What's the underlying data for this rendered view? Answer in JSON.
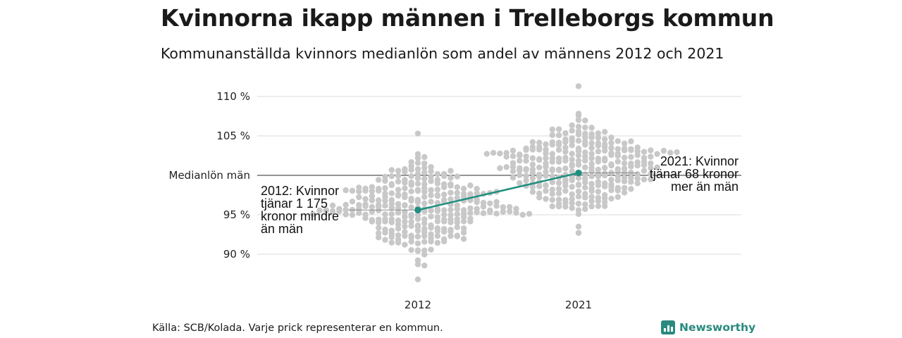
{
  "header": {
    "title": "Kvinnorna ikapp männen i Trelleborgs kommun",
    "subtitle": "Kommunanställda kvinnors medianlön som andel av männens 2012 och 2021"
  },
  "footer": {
    "source": "Källa: SCB/Kolada. Varje prick representerar en kommun.",
    "brand": "Newsworthy",
    "brand_icon": "bar-chart-logo-icon"
  },
  "colors": {
    "dots": "#c8c8c8",
    "highlight": "#1f8f80",
    "grid": "#e2e2e2",
    "reference": "#555555"
  },
  "chart_data": {
    "type": "scatter",
    "subtype": "beeswarm",
    "categories": [
      "2012",
      "2021"
    ],
    "ylim": [
      86,
      112
    ],
    "yticks": [
      {
        "value": 90,
        "label": "90 %"
      },
      {
        "value": 95,
        "label": "95 %"
      },
      {
        "value": 100,
        "label": "Medianlön män"
      },
      {
        "value": 105,
        "label": "105 %"
      },
      {
        "value": 110,
        "label": "110 %"
      }
    ],
    "reference_line": {
      "value": 100,
      "label": "Medianlön män"
    },
    "swarms": [
      {
        "category": "2012",
        "min": 86.8,
        "max": 105.3,
        "center": 96.3,
        "spread": 2.6
      },
      {
        "category": "2021",
        "min": 92.7,
        "max": 111.3,
        "center": 101.2,
        "spread": 2.8
      }
    ],
    "highlight": {
      "name": "Trelleborg",
      "points": [
        {
          "x": "2012",
          "y": 95.6
        },
        {
          "x": "2021",
          "y": 100.3
        }
      ],
      "annotations": [
        {
          "x": "2012",
          "lines": [
            "2012: Kvinnor",
            "tjänar 1 175",
            "kronor mindre",
            "än män"
          ]
        },
        {
          "x": "2021",
          "lines": [
            "2021: Kvinnor",
            "tjänar 68 kronor",
            "mer än män"
          ]
        }
      ]
    }
  }
}
